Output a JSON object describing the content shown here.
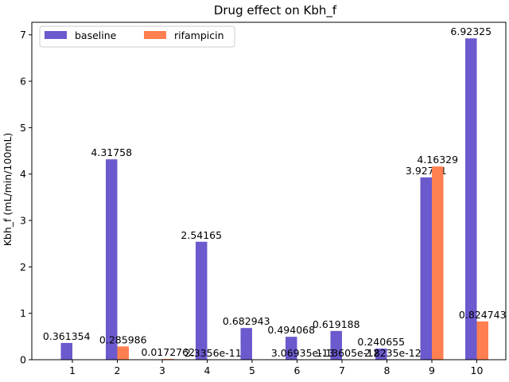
{
  "chart_data": {
    "type": "bar",
    "title": "Drug effect on Kbh_f",
    "xlabel": "",
    "ylabel": "Kbh_f (mL/min/100mL)",
    "categories": [
      "1",
      "2",
      "3",
      "4",
      "5",
      "6",
      "7",
      "8",
      "9",
      "10"
    ],
    "ylim": [
      0,
      7.27
    ],
    "yticks": [
      0,
      1,
      2,
      3,
      4,
      5,
      6,
      7
    ],
    "grid": false,
    "legend_position": "top-left",
    "series": [
      {
        "name": "baseline",
        "color": "#6a5acd",
        "values": [
          0.361354,
          4.31758,
          0,
          2.54165,
          0.682943,
          0.494068,
          0.619188,
          0.240655,
          3.92791,
          6.92325
        ],
        "labels": [
          "0.361354",
          "4.31758",
          "",
          "2.54165",
          "0.682943",
          "0.494068",
          "0.619188",
          "0.240655",
          "3.92791",
          "6.92325"
        ]
      },
      {
        "name": "rifampicin",
        "color": "#ff7f50",
        "values": [
          0,
          0.285986,
          0.0172762,
          2.3356e-11,
          0,
          3.06935e-13,
          1.13605e-12,
          2.8235e-12,
          4.16329,
          0.824743
        ],
        "labels": [
          "",
          "0.285986",
          "0.0172762",
          "2.3356e-11",
          "",
          "3.06935e-13",
          "1.13605e-12",
          "2.8235e-12",
          "4.16329",
          "0.824743"
        ]
      }
    ]
  }
}
